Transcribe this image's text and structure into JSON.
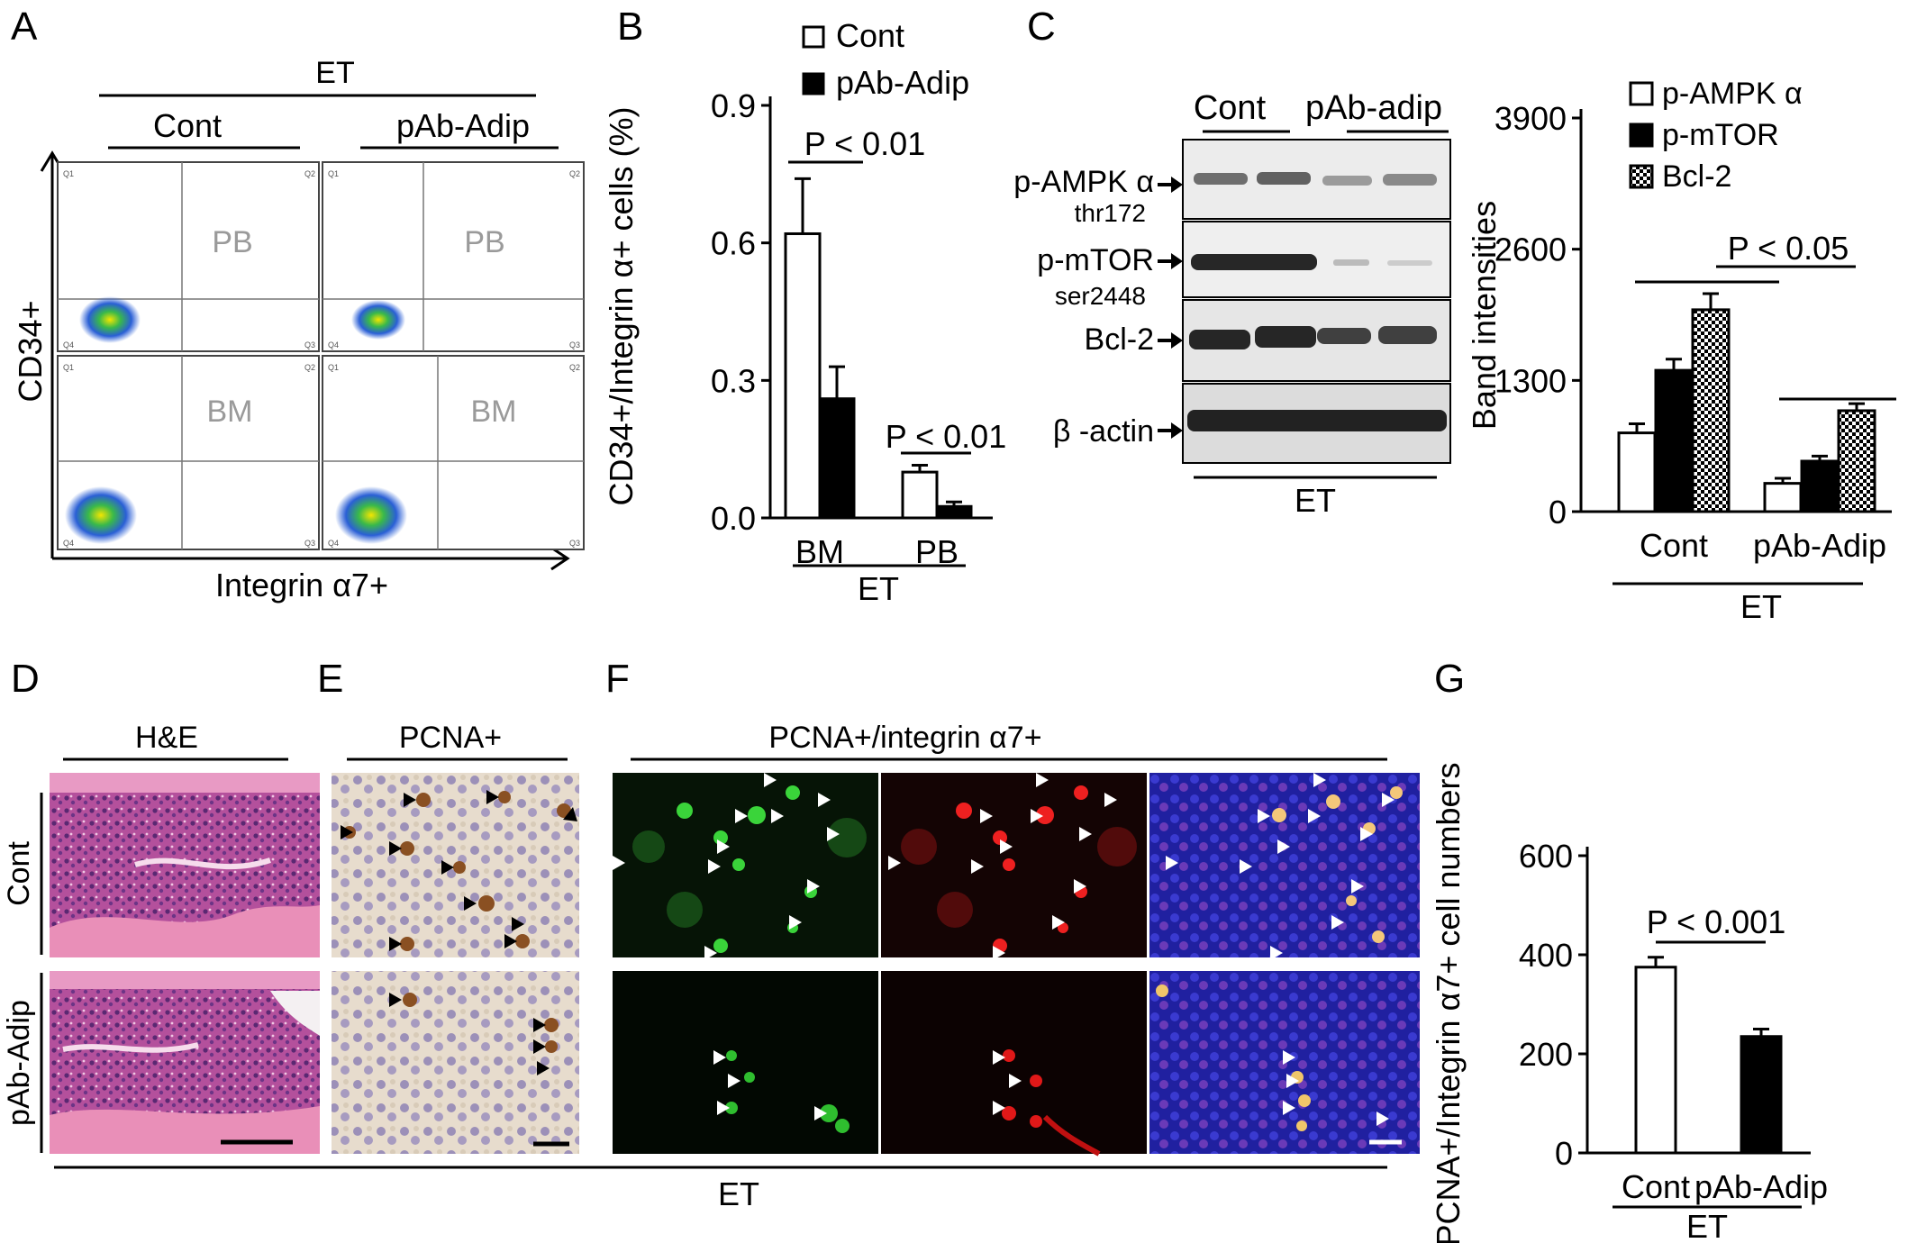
{
  "panels": {
    "A": {
      "letter": "A",
      "group_label": "ET",
      "columns": [
        "Cont",
        "pAb-Adip"
      ],
      "y_axis_label": "CD34+",
      "x_axis_label": "Integrin α7+",
      "quadrant_labels": {
        "q1": "Q1",
        "q2": "Q2",
        "q3": "Q3",
        "q4": "Q4"
      },
      "rows": [
        "PB",
        "BM"
      ]
    },
    "B": {
      "letter": "B",
      "p_values": [
        "P < 0.01",
        "P < 0.01"
      ],
      "group_label": "ET"
    },
    "C": {
      "letter": "C",
      "blot_lanes": [
        "Cont",
        "pAb-adip"
      ],
      "blot_rows": [
        {
          "name": "p-AMPK α",
          "sub": "thr172"
        },
        {
          "name": "p-mTOR",
          "sub": "ser2448"
        },
        {
          "name": "Bcl-2",
          "sub": ""
        },
        {
          "name": "β -actin",
          "sub": ""
        }
      ],
      "blot_group": "ET",
      "p_value": "P < 0.05",
      "group_label": "ET"
    },
    "D": {
      "letter": "D",
      "header": "H&E",
      "rows": [
        "Cont",
        "pAb-Adip"
      ]
    },
    "E": {
      "letter": "E",
      "header": "PCNA+"
    },
    "F": {
      "letter": "F",
      "header": "PCNA+/integrin α7+"
    },
    "G": {
      "letter": "G",
      "p_value": "P < 0.001",
      "group_label": "ET"
    },
    "bottom_group_label": "ET"
  },
  "chart_data": [
    {
      "id": "B",
      "type": "bar",
      "categories": [
        "BM",
        "PB"
      ],
      "series": [
        {
          "name": "Cont",
          "values": [
            0.62,
            0.1
          ],
          "errors": [
            0.12,
            0.015
          ],
          "color": "#ffffff"
        },
        {
          "name": "pAb-Adip",
          "values": [
            0.26,
            0.025
          ],
          "errors": [
            0.07,
            0.01
          ],
          "color": "#000000"
        }
      ],
      "ylabel": "CD34+/Integrin α+ cells (%)",
      "yticks": [
        "0.0",
        "0.3",
        "0.6",
        "0.9"
      ],
      "ylim": [
        0,
        0.9
      ],
      "legend": "top"
    },
    {
      "id": "C",
      "type": "bar",
      "categories": [
        "Cont",
        "pAb-Adip"
      ],
      "series": [
        {
          "name": "p-AMPK α",
          "values": [
            780,
            280
          ],
          "errors": [
            90,
            50
          ],
          "color": "#ffffff"
        },
        {
          "name": "p-mTOR",
          "values": [
            1400,
            500
          ],
          "errors": [
            110,
            50
          ],
          "color": "#000000"
        },
        {
          "name": "Bcl-2",
          "values": [
            2000,
            1000
          ],
          "errors": [
            160,
            70
          ],
          "color": "checker"
        }
      ],
      "ylabel": "Band intensities",
      "yticks": [
        "0",
        "1300",
        "2600",
        "3900"
      ],
      "ylim": [
        0,
        3900
      ],
      "legend": "top-left"
    },
    {
      "id": "G",
      "type": "bar",
      "categories": [
        "Cont",
        "pAb-Adip"
      ],
      "series": [
        {
          "name": "",
          "values": [
            375,
            235
          ],
          "errors": [
            20,
            15
          ],
          "colors": [
            "#ffffff",
            "#000000"
          ]
        }
      ],
      "ylabel": "PCNA+/Integrin α7+ cell numbers",
      "yticks": [
        "0",
        "200",
        "400",
        "600"
      ],
      "ylim": [
        0,
        600
      ]
    }
  ]
}
